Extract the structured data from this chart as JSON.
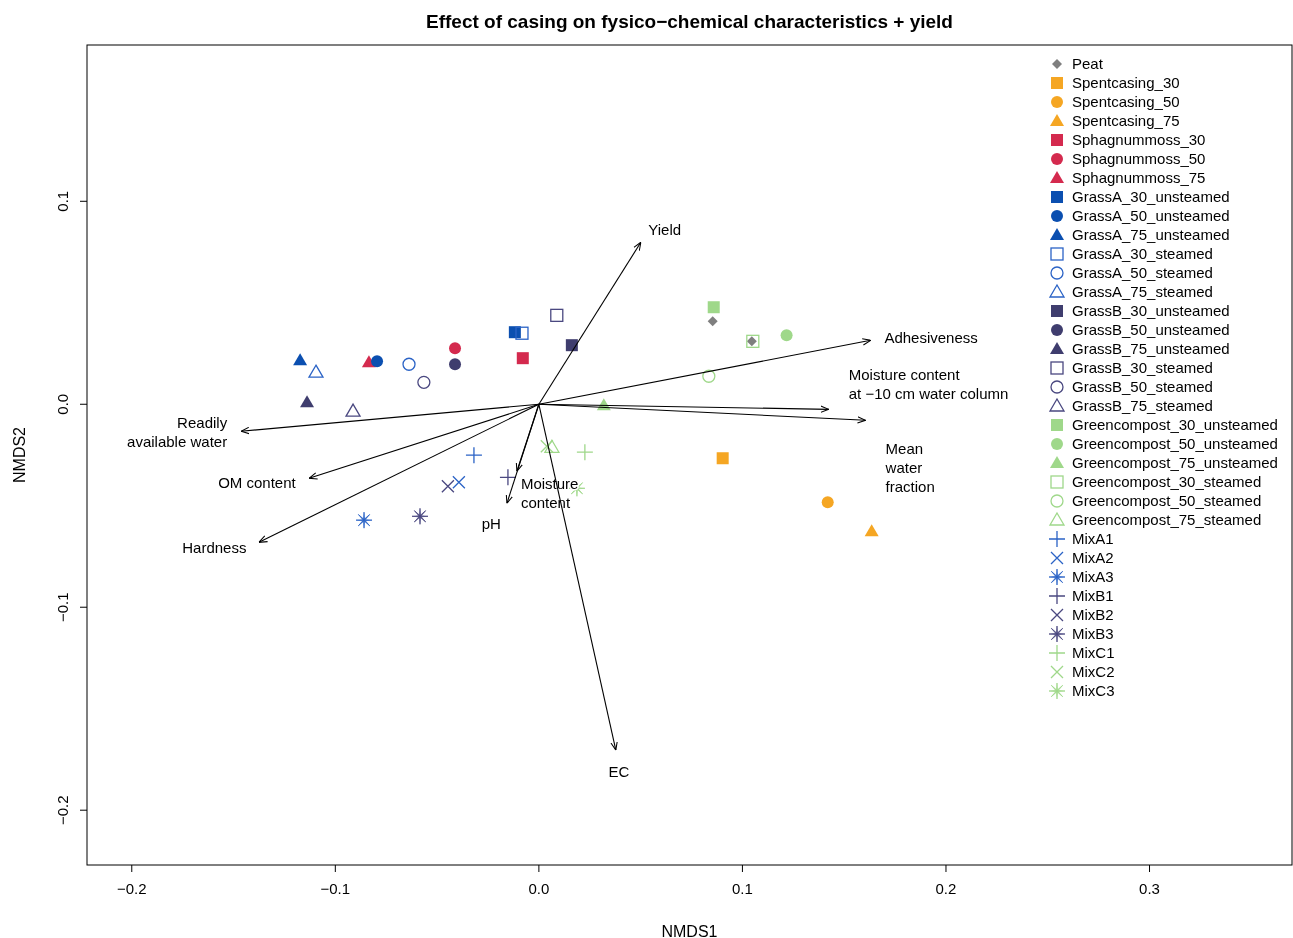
{
  "chart_data": {
    "type": "scatter",
    "title": "Effect of casing on fysico−chemical characteristics + yield",
    "xlabel": "NMDS1",
    "ylabel": "NMDS2",
    "xlim": [
      -0.222,
      0.37
    ],
    "ylim": [
      -0.227,
      0.177
    ],
    "xticks": [
      {
        "value": -0.2,
        "label": "−0.2"
      },
      {
        "value": -0.1,
        "label": "−0.1"
      },
      {
        "value": 0,
        "label": "0.0"
      },
      0.1,
      0.2,
      0.3
    ],
    "yticks": [
      {
        "value": -0.2,
        "label": "−0.2"
      },
      {
        "value": -0.1,
        "label": "−0.1"
      },
      {
        "value": 0,
        "label": "0.0"
      },
      0.1
    ],
    "grid": false,
    "legend": "top right",
    "series": [
      {
        "name": "Peat",
        "color": "#7f7f7f",
        "marker": "diamond",
        "x": [
          0.0854,
          0.1046
        ],
        "values": [
          0.0409,
          0.031
        ]
      },
      {
        "name": "Spentcasing_30",
        "color": "#f5a623",
        "marker": "square",
        "x": [
          0.0903
        ],
        "values": [
          -0.0266
        ]
      },
      {
        "name": "Spentcasing_50",
        "color": "#f5a623",
        "marker": "circle",
        "x": [
          0.1419
        ],
        "values": [
          -0.0483
        ]
      },
      {
        "name": "Spentcasing_75",
        "color": "#f5a623",
        "marker": "triangle",
        "x": [
          0.1635
        ],
        "values": [
          -0.0626
        ]
      },
      {
        "name": "Sphagnummoss_30",
        "color": "#d42a4e",
        "marker": "square",
        "x": [
          -0.0079
        ],
        "values": [
          0.0227
        ]
      },
      {
        "name": "Sphagnummoss_50",
        "color": "#d42a4e",
        "marker": "circle",
        "x": [
          -0.0412
        ],
        "values": [
          0.0276
        ]
      },
      {
        "name": "Sphagnummoss_75",
        "color": "#d42a4e",
        "marker": "triangle",
        "x": [
          -0.0835
        ],
        "values": [
          0.0207
        ]
      },
      {
        "name": "GrassA_30_unsteamed",
        "color": "#0b4fb0",
        "marker": "square",
        "x": [
          -0.0118
        ],
        "values": [
          0.0355
        ]
      },
      {
        "name": "GrassA_50_unsteamed",
        "color": "#0b4fb0",
        "marker": "circle",
        "x": [
          -0.0795
        ],
        "values": [
          0.0212
        ]
      },
      {
        "name": "GrassA_75_unsteamed",
        "color": "#0b4fb0",
        "marker": "triangle",
        "x": [
          -0.1173
        ],
        "values": [
          0.0217
        ]
      },
      {
        "name": "GrassA_30_steamed",
        "color": "#2b63c6",
        "marker": "square-open",
        "x": [
          -0.0083
        ],
        "values": [
          0.035
        ]
      },
      {
        "name": "GrassA_50_steamed",
        "color": "#2b63c6",
        "marker": "circle-open",
        "x": [
          -0.0638
        ],
        "values": [
          0.0197
        ]
      },
      {
        "name": "GrassA_75_steamed",
        "color": "#2b63c6",
        "marker": "triangle-open",
        "x": [
          -0.1095
        ],
        "values": [
          0.0158
        ]
      },
      {
        "name": "GrassB_30_unsteamed",
        "color": "#3f3d6e",
        "marker": "square",
        "x": [
          0.0162
        ],
        "values": [
          0.0291
        ]
      },
      {
        "name": "GrassB_50_unsteamed",
        "color": "#3f3d6e",
        "marker": "circle",
        "x": [
          -0.0412
        ],
        "values": [
          0.0197
        ]
      },
      {
        "name": "GrassB_75_unsteamed",
        "color": "#3f3d6e",
        "marker": "triangle",
        "x": [
          -0.1139
        ],
        "values": [
          0.001
        ]
      },
      {
        "name": "GrassB_30_steamed",
        "color": "#4a4880",
        "marker": "square-open",
        "x": [
          0.0088
        ],
        "values": [
          0.0438
        ]
      },
      {
        "name": "GrassB_50_steamed",
        "color": "#4a4880",
        "marker": "circle-open",
        "x": [
          -0.0565
        ],
        "values": [
          0.0108
        ]
      },
      {
        "name": "GrassB_75_steamed",
        "color": "#4a4880",
        "marker": "triangle-open",
        "x": [
          -0.0913
        ],
        "values": [
          -0.0034
        ]
      },
      {
        "name": "Greencompost_30_unsteamed",
        "color": "#9fd88a",
        "marker": "square",
        "x": [
          0.0859
        ],
        "values": [
          0.0478
        ]
      },
      {
        "name": "Greencompost_50_unsteamed",
        "color": "#9fd88a",
        "marker": "circle",
        "x": [
          0.1217
        ],
        "values": [
          0.034
        ]
      },
      {
        "name": "Greencompost_75_unsteamed",
        "color": "#9fd88a",
        "marker": "triangle",
        "x": [
          0.0319
        ],
        "values": [
          -0.0005
        ]
      },
      {
        "name": "Greencompost_30_steamed",
        "color": "#9fd88a",
        "marker": "square-open",
        "x": [
          0.1051
        ],
        "values": [
          0.031
        ]
      },
      {
        "name": "Greencompost_50_steamed",
        "color": "#9fd88a",
        "marker": "circle-open",
        "x": [
          0.0835
        ],
        "values": [
          0.0138
        ]
      },
      {
        "name": "Greencompost_75_steamed",
        "color": "#9fd88a",
        "marker": "triangle-open",
        "x": [
          0.0064
        ],
        "values": [
          -0.0212
        ]
      },
      {
        "name": "MixA1",
        "color": "#2b63c6",
        "marker": "cross",
        "x": [
          -0.0319
        ],
        "values": [
          -0.0251
        ]
      },
      {
        "name": "MixA2",
        "color": "#2b63c6",
        "marker": "x",
        "x": [
          -0.0393
        ],
        "values": [
          -0.0384
        ]
      },
      {
        "name": "MixA3",
        "color": "#2b63c6",
        "marker": "star",
        "x": [
          -0.0859
        ],
        "values": [
          -0.0571
        ]
      },
      {
        "name": "MixB1",
        "color": "#4a4880",
        "marker": "cross",
        "x": [
          -0.0152
        ],
        "values": [
          -0.036
        ]
      },
      {
        "name": "MixB2",
        "color": "#4a4880",
        "marker": "x",
        "x": [
          -0.0447
        ],
        "values": [
          -0.0404
        ]
      },
      {
        "name": "MixB3",
        "color": "#4a4880",
        "marker": "star",
        "x": [
          -0.0584
        ],
        "values": [
          -0.0552
        ]
      },
      {
        "name": "MixC1",
        "color": "#9fd88a",
        "marker": "cross",
        "x": [
          0.0226
        ],
        "values": [
          -0.0236
        ]
      },
      {
        "name": "MixC2",
        "color": "#9fd88a",
        "marker": "x",
        "x": [
          0.0039
        ],
        "values": [
          -0.0207
        ]
      },
      {
        "name": "MixC3",
        "color": "#9fd88a",
        "marker": "star",
        "x": [
          0.0187
        ],
        "values": [
          -0.0414
        ]
      },
      {
        "name": "Yield",
        "type": "line",
        "color": "#000000",
        "marker": "none",
        "x": [
          0,
          0.0501
        ],
        "values": [
          0,
          0.0798
        ]
      },
      {
        "name": "Adhesiveness",
        "type": "line",
        "color": "#000000",
        "marker": "none",
        "x": [
          0,
          0.163
        ],
        "values": [
          0,
          0.0315
        ]
      },
      {
        "name": "Moisture content\nat −10 cm water column",
        "type": "line",
        "color": "#000000",
        "marker": "none",
        "x": [
          0,
          0.1424
        ],
        "values": [
          0,
          -0.0025
        ]
      },
      {
        "name": "Mean\nwater\nfraction",
        "type": "line",
        "color": "#000000",
        "marker": "none",
        "x": [
          0,
          0.1605
        ],
        "values": [
          0,
          -0.0079
        ]
      },
      {
        "name": "Readily\navailable water",
        "type": "line",
        "color": "#000000",
        "marker": "none",
        "x": [
          0,
          -0.1463
        ],
        "values": [
          0,
          -0.0133
        ]
      },
      {
        "name": "OM content",
        "type": "line",
        "color": "#000000",
        "marker": "none",
        "x": [
          0,
          -0.1129
        ],
        "values": [
          0,
          -0.0365
        ]
      },
      {
        "name": "Hardness",
        "type": "line",
        "color": "#000000",
        "marker": "none",
        "x": [
          0,
          -0.1375
        ],
        "values": [
          0,
          -0.068
        ]
      },
      {
        "name": "pH",
        "type": "line",
        "color": "#000000",
        "marker": "none",
        "x": [
          0,
          -0.0157
        ],
        "values": [
          0,
          -0.0488
        ]
      },
      {
        "name": "Moisture\ncontent",
        "type": "line",
        "color": "#000000",
        "marker": "none",
        "x": [
          0,
          -0.0108
        ],
        "values": [
          0,
          -0.033
        ]
      },
      {
        "name": "EC",
        "type": "line",
        "color": "#000000",
        "marker": "none",
        "x": [
          0,
          0.0378
        ],
        "values": [
          0,
          -0.1704
        ]
      }
    ]
  }
}
